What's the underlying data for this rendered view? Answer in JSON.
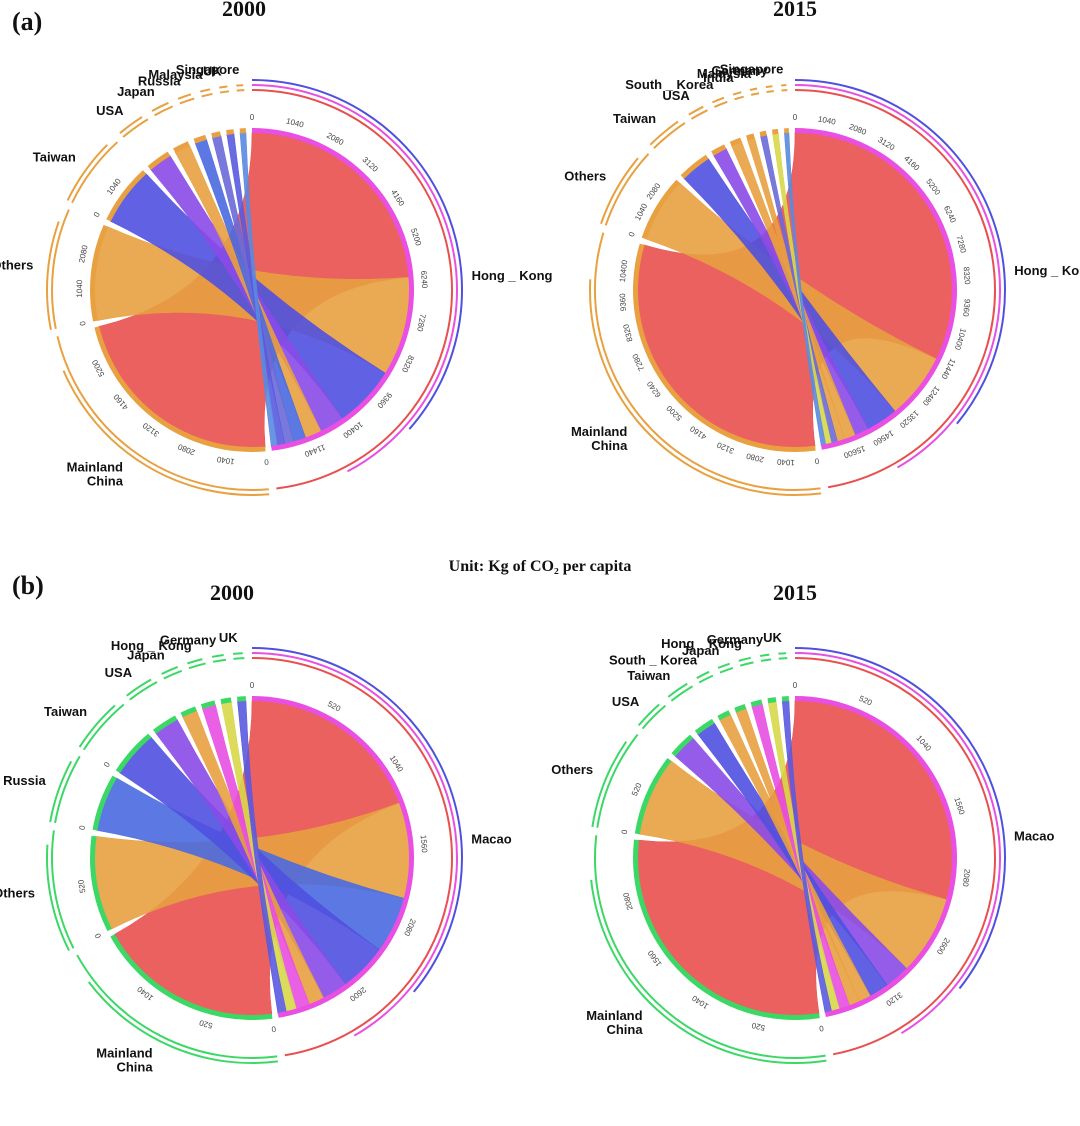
{
  "unit_label": "Unit: Kg of CO₂ per capita",
  "colors": {
    "Mainland China": "#e8504f",
    "Hong_Kong": "#e84fe2",
    "Macao": "#e84fe2",
    "Taiwan": "#5050e0",
    "Russia": "#4a6ae0",
    "USA": "#8a4ae8",
    "Others": "#e8a040",
    "Japan": "#e8a040",
    "Malaysia": "#6a6ad8",
    "UK": "#5a5ae0",
    "Singapore": "#5a8ae0",
    "India": "#e8a040",
    "Germany": "#d8d84a",
    "South_Korea": "#e8a040",
    "panel_a_outer": "#e8a040",
    "panel_b_outer": "#3cd866"
  },
  "chart_data": [
    {
      "type": "chord",
      "panel": "(a)",
      "title": "2000",
      "focus": "Hong_Kong",
      "focus_label": "Hong _ Kong",
      "sectors": [
        {
          "name": "Hong_Kong",
          "label": "Hong _ Kong",
          "value": 11900,
          "ticks": [
            "0",
            "1040",
            "2080",
            "3120",
            "4160",
            "5200",
            "6240",
            "7280",
            "8320",
            "9360",
            "10400",
            "11440"
          ]
        },
        {
          "name": "Mainland China",
          "label": "Mainland China",
          "value": 5600,
          "ticks": [
            "0",
            "1040",
            "2080",
            "3120",
            "4160",
            "5200"
          ]
        },
        {
          "name": "Others",
          "label": "Others",
          "value": 2400,
          "ticks": [
            "0",
            "1040",
            "2080"
          ]
        },
        {
          "name": "Taiwan",
          "label": "Taiwan",
          "value": 1500,
          "ticks": [
            "0",
            "1040"
          ]
        },
        {
          "name": "USA",
          "label": "USA",
          "value": 600,
          "ticks": []
        },
        {
          "name": "Japan",
          "label": "Japan",
          "value": 400,
          "ticks": []
        },
        {
          "name": "Russia",
          "label": "Russia",
          "value": 300,
          "ticks": []
        },
        {
          "name": "Malaysia",
          "label": "Malaysia",
          "value": 220,
          "ticks": []
        },
        {
          "name": "UK",
          "label": "UK",
          "value": 180,
          "ticks": []
        },
        {
          "name": "Singapore",
          "label": "Singapore",
          "value": 150,
          "ticks": []
        }
      ]
    },
    {
      "type": "chord",
      "panel": "",
      "title": "2015",
      "focus": "Hong_Kong",
      "focus_label": "Hong _ Kong",
      "sectors": [
        {
          "name": "Hong_Kong",
          "label": "Hong _ Kong",
          "value": 16300,
          "ticks": [
            "0",
            "1040",
            "2080",
            "3120",
            "4160",
            "5200",
            "6240",
            "7280",
            "8320",
            "9360",
            "10400",
            "11440",
            "12480",
            "13520",
            "14560",
            "15600"
          ]
        },
        {
          "name": "Mainland China",
          "label": "Mainland China",
          "value": 10900,
          "ticks": [
            "0",
            "1040",
            "2080",
            "3120",
            "4160",
            "5200",
            "6240",
            "7280",
            "8320",
            "9360",
            "10400"
          ]
        },
        {
          "name": "Others",
          "label": "Others",
          "value": 2300,
          "ticks": [
            "0",
            "1040",
            "2080"
          ]
        },
        {
          "name": "Taiwan",
          "label": "Taiwan",
          "value": 1100,
          "ticks": []
        },
        {
          "name": "USA",
          "label": "USA",
          "value": 500,
          "ticks": []
        },
        {
          "name": "South_Korea",
          "label": "South _ Korea",
          "value": 380,
          "ticks": []
        },
        {
          "name": "India",
          "label": "India",
          "value": 260,
          "ticks": []
        },
        {
          "name": "Malaysia",
          "label": "Malaysia",
          "value": 220,
          "ticks": []
        },
        {
          "name": "Germany",
          "label": "Germany",
          "value": 200,
          "ticks": []
        },
        {
          "name": "Singapore",
          "label": "Singapore",
          "value": 160,
          "ticks": []
        }
      ]
    },
    {
      "type": "chord",
      "panel": "(b)",
      "title": "2000",
      "focus": "Macao",
      "focus_label": "Macao",
      "sectors": [
        {
          "name": "Macao",
          "label": "Macao",
          "value": 2750,
          "ticks": [
            "0",
            "520",
            "1040",
            "1560",
            "2080",
            "2600"
          ]
        },
        {
          "name": "Mainland China",
          "label": "Mainland China",
          "value": 1100,
          "ticks": [
            "0",
            "520",
            "1040"
          ]
        },
        {
          "name": "Others",
          "label": "Others",
          "value": 560,
          "ticks": [
            "0",
            "520"
          ]
        },
        {
          "name": "Russia",
          "label": "Russia",
          "value": 330,
          "ticks": [
            "0"
          ]
        },
        {
          "name": "Taiwan",
          "label": "Taiwan",
          "value": 280,
          "ticks": [
            "0"
          ]
        },
        {
          "name": "USA",
          "label": "USA",
          "value": 150,
          "ticks": []
        },
        {
          "name": "Japan",
          "label": "Japan",
          "value": 90,
          "ticks": []
        },
        {
          "name": "Hong_Kong",
          "label": "Hong _ Kong",
          "value": 80,
          "ticks": []
        },
        {
          "name": "Germany",
          "label": "Germany",
          "value": 60,
          "ticks": []
        },
        {
          "name": "UK",
          "label": "UK",
          "value": 50,
          "ticks": []
        }
      ]
    },
    {
      "type": "chord",
      "panel": "",
      "title": "2015",
      "focus": "Macao",
      "focus_label": "Macao",
      "sectors": [
        {
          "name": "Macao",
          "label": "Macao",
          "value": 3450,
          "ticks": [
            "0",
            "520",
            "1040",
            "1560",
            "2080",
            "2600",
            "3120"
          ]
        },
        {
          "name": "Mainland China",
          "label": "Mainland China",
          "value": 2150,
          "ticks": [
            "0",
            "520",
            "1040",
            "1560",
            "2080"
          ]
        },
        {
          "name": "Others",
          "label": "Others",
          "value": 600,
          "ticks": [
            "0",
            "520"
          ]
        },
        {
          "name": "USA",
          "label": "USA",
          "value": 190,
          "ticks": []
        },
        {
          "name": "Taiwan",
          "label": "Taiwan",
          "value": 150,
          "ticks": []
        },
        {
          "name": "South_Korea",
          "label": "South _ Korea",
          "value": 90,
          "ticks": []
        },
        {
          "name": "Japan",
          "label": "Japan",
          "value": 80,
          "ticks": []
        },
        {
          "name": "Hong_Kong",
          "label": "Hong _ Kong",
          "value": 80,
          "ticks": []
        },
        {
          "name": "Germany",
          "label": "Germany",
          "value": 60,
          "ticks": []
        },
        {
          "name": "UK",
          "label": "UK",
          "value": 50,
          "ticks": []
        }
      ]
    }
  ]
}
